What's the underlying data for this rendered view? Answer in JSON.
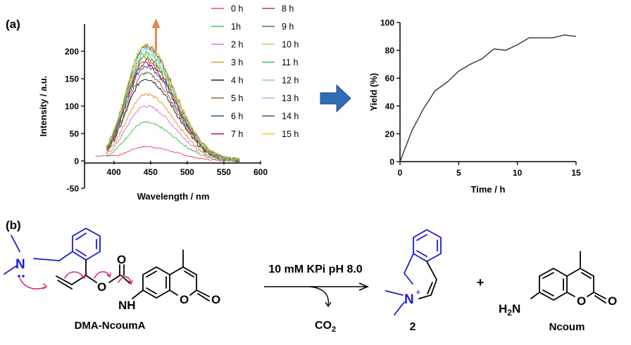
{
  "panel_labels": {
    "a": "(a)",
    "b": "(b)"
  },
  "chart_data": [
    {
      "type": "line",
      "xlabel": "Wavelength / nm",
      "ylabel": "Intensity / a.u.",
      "xlim": [
        360,
        600
      ],
      "ylim": [
        -50,
        250
      ],
      "x_ticks": [
        400,
        450,
        500,
        550,
        600
      ],
      "y_ticks": [
        -50,
        0,
        50,
        100,
        150,
        200
      ],
      "x_tick_labels": [
        "400",
        "450",
        "500",
        "550",
        "600"
      ],
      "y_tick_labels": [
        "-50",
        "0",
        "50",
        "100",
        "150",
        "200"
      ],
      "grid": false,
      "legend_position": "right",
      "series": [
        {
          "name": "0 h",
          "color": "#e8507a",
          "peak": 26,
          "x_start": 375
        },
        {
          "name": "1h",
          "color": "#4cc24c",
          "peak": 70,
          "x_start": 390
        },
        {
          "name": "2 h",
          "color": "#e070d8",
          "peak": 100,
          "x_start": 390
        },
        {
          "name": "3 h",
          "color": "#e0a030",
          "peak": 122,
          "x_start": 390
        },
        {
          "name": "4 h",
          "color": "#222222",
          "peak": 150,
          "x_start": 390
        },
        {
          "name": "5 h",
          "color": "#8b6a3a",
          "peak": 160,
          "x_start": 390
        },
        {
          "name": "6 h",
          "color": "#2f4fb8",
          "peak": 172,
          "x_start": 390
        },
        {
          "name": "7 h",
          "color": "#b01030",
          "peak": 178,
          "x_start": 390
        },
        {
          "name": "8 h",
          "color": "#c0306a",
          "peak": 183,
          "x_start": 390
        },
        {
          "name": "9 h",
          "color": "#2e8b3a",
          "peak": 188,
          "x_start": 390
        },
        {
          "name": "10 h",
          "color": "#e0b860",
          "peak": 192,
          "x_start": 390
        },
        {
          "name": "11 h",
          "color": "#38c84a",
          "peak": 197,
          "x_start": 390
        },
        {
          "name": "12 h",
          "color": "#7ecfd0",
          "peak": 203,
          "x_start": 390
        },
        {
          "name": "13 h",
          "color": "#a6b8e8",
          "peak": 207,
          "x_start": 390
        },
        {
          "name": "14 h",
          "color": "#555555",
          "peak": 210,
          "x_start": 390
        },
        {
          "name": "15 h",
          "color": "#f0c820",
          "peak": 212,
          "x_start": 390
        }
      ],
      "peak_wavelength": 443,
      "arrow_color": "#e8864a"
    },
    {
      "type": "line",
      "xlabel": "Time / h",
      "ylabel": "Yield (%)",
      "xlim": [
        0,
        15
      ],
      "ylim": [
        0,
        100
      ],
      "x_ticks": [
        0,
        5,
        10,
        15
      ],
      "y_ticks": [
        0,
        20,
        40,
        60,
        80,
        100
      ],
      "x_tick_labels": [
        "0",
        "5",
        "10",
        "15"
      ],
      "y_tick_labels": [
        "0",
        "20",
        "40",
        "60",
        "80",
        "100"
      ],
      "grid": false,
      "x": [
        0,
        1,
        2,
        3,
        4,
        5,
        6,
        7,
        8,
        9,
        10,
        11,
        12,
        13,
        14,
        15
      ],
      "y": [
        0,
        22,
        38,
        51,
        57,
        65,
        70,
        74,
        81,
        80,
        84,
        89,
        89,
        89,
        91,
        90
      ],
      "line_color": "#333333"
    }
  ],
  "scheme": {
    "reactant_label": "DMA-NcoumA",
    "condition": "10 mM KPi pH 8.0",
    "byproduct": "CO",
    "byproduct_sub": "2",
    "product_label": "2",
    "plus": "+",
    "product2_label": "Ncoum",
    "atoms": {
      "n": "N",
      "o": "O",
      "nh": "NH",
      "n_plus": "N",
      "plus_charge": "+",
      "h2n": "H",
      "h2n_sub": "2",
      "h2n_n": "N"
    }
  }
}
